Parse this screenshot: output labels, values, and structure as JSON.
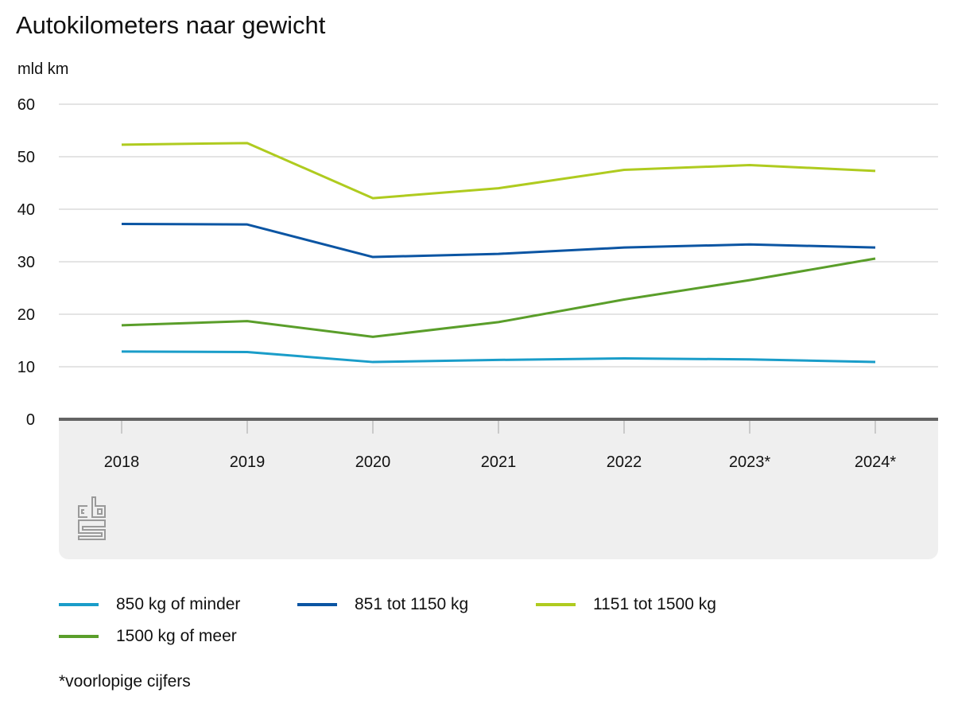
{
  "chart_data": {
    "type": "line",
    "title": "Autokilometers naar gewicht",
    "ylabel": "mld km",
    "xlabel": "",
    "ylim": [
      0,
      60
    ],
    "yticks": [
      0,
      10,
      20,
      30,
      40,
      50,
      60
    ],
    "grid": true,
    "legend_position": "bottom",
    "categories": [
      "2018",
      "2019",
      "2020",
      "2021",
      "2022",
      "2023*",
      "2024*"
    ],
    "series": [
      {
        "name": "850 kg of minder",
        "color": "#1a9dc9",
        "values": [
          12.9,
          12.8,
          10.9,
          11.3,
          11.6,
          11.4,
          10.9
        ]
      },
      {
        "name": "851 tot 1150 kg",
        "color": "#0b55a3",
        "values": [
          37.2,
          37.1,
          30.9,
          31.5,
          32.7,
          33.3,
          32.7
        ]
      },
      {
        "name": "1151 tot 1500 kg",
        "color": "#afcb1f",
        "values": [
          52.3,
          52.6,
          42.1,
          44.0,
          47.5,
          48.4,
          47.3
        ]
      },
      {
        "name": "1500 kg of meer",
        "color": "#5a9e2a",
        "values": [
          17.9,
          18.7,
          15.7,
          18.5,
          22.8,
          26.5,
          30.6
        ]
      }
    ],
    "footnote": "*voorlopige cijfers"
  },
  "logo": {
    "icon": "cbs-logo-icon"
  }
}
